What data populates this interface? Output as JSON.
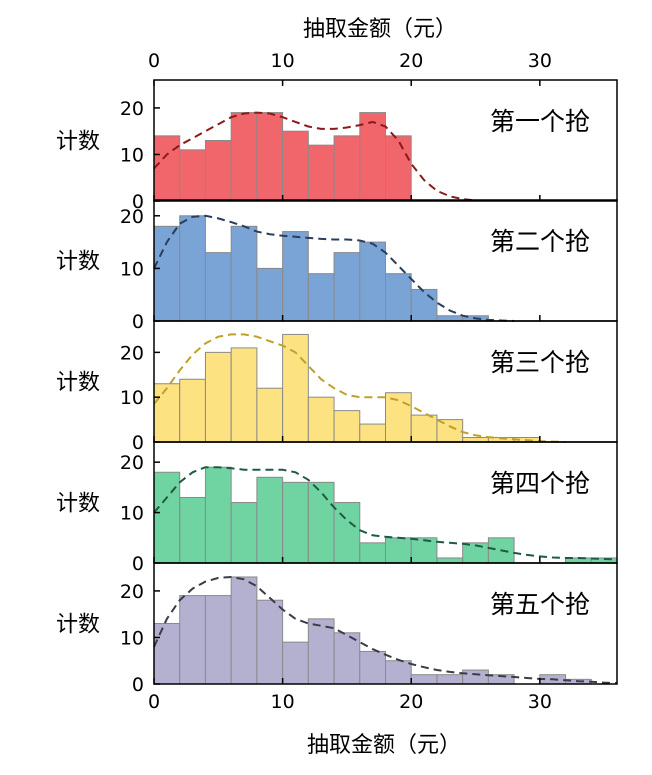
{
  "chart_data": {
    "type": "bar",
    "x_axis": {
      "label": "抽取金额（元）",
      "range": [
        0,
        36
      ],
      "ticks": [
        0,
        10,
        20,
        30
      ],
      "tick_labels": [
        "0",
        "10",
        "20",
        "30"
      ],
      "shown_on": [
        "top",
        "bottom"
      ]
    },
    "y_axis": {
      "label": "计数",
      "ticks": [
        0,
        10,
        20
      ],
      "tick_labels": [
        "0",
        "10",
        "20"
      ]
    },
    "bin_width": 2,
    "grid": false,
    "panels": [
      {
        "label": "第一个抢",
        "color": "#f0666b",
        "curve_color": "#8b1a1a",
        "ylim": [
          0,
          26
        ],
        "ticks": [
          0,
          10,
          20
        ],
        "bin_starts": [
          0,
          2,
          4,
          6,
          8,
          10,
          12,
          14,
          16,
          18
        ],
        "values": [
          14,
          11,
          13,
          19,
          19,
          15,
          12,
          14,
          19,
          14
        ],
        "curve": {
          "x": [
            0,
            1,
            2,
            3,
            4,
            5,
            6,
            7,
            8,
            9,
            10,
            11,
            12,
            13,
            14,
            15,
            16,
            17,
            18,
            19,
            20,
            21,
            22,
            23,
            24,
            25
          ],
          "y": [
            7,
            10,
            12,
            13.5,
            15,
            16.5,
            18,
            18.8,
            19,
            18.8,
            18,
            17,
            16,
            15.5,
            15.5,
            15.8,
            16.3,
            17,
            16,
            13,
            8,
            4.5,
            2.2,
            1,
            0.4,
            0.1
          ]
        }
      },
      {
        "label": "第二个抢",
        "color": "#7aa3d6",
        "curve_color": "#2a3d5c",
        "ylim": [
          0,
          23
        ],
        "ticks": [
          0,
          10,
          20
        ],
        "bin_starts": [
          0,
          2,
          4,
          6,
          8,
          10,
          12,
          14,
          16,
          18,
          20,
          22,
          24,
          26
        ],
        "values": [
          18,
          20,
          13,
          18,
          10,
          17,
          9,
          13,
          15,
          9,
          6,
          1,
          1,
          0
        ],
        "curve": {
          "x": [
            0,
            1,
            2,
            3,
            4,
            5,
            6,
            7,
            8,
            9,
            10,
            11,
            12,
            13,
            14,
            15,
            16,
            17,
            18,
            19,
            20,
            21,
            22,
            23,
            24,
            25,
            26,
            27,
            28
          ],
          "y": [
            10,
            15,
            18.5,
            19.8,
            20,
            19.5,
            18.8,
            18,
            17,
            16.5,
            16.2,
            16,
            15.8,
            15.6,
            15.5,
            15.5,
            15.3,
            14.7,
            13,
            10.5,
            8,
            5.5,
            3.5,
            2,
            1,
            0.5,
            0.2,
            0.1,
            0
          ]
        }
      },
      {
        "label": "第三个抢",
        "color": "#fde282",
        "curve_color": "#bfa02a",
        "ylim": [
          0,
          27
        ],
        "ticks": [
          0,
          10,
          20
        ],
        "bin_starts": [
          0,
          2,
          4,
          6,
          8,
          10,
          12,
          14,
          16,
          18,
          20,
          22,
          24,
          26,
          28,
          30
        ],
        "values": [
          13,
          14,
          20,
          21,
          12,
          24,
          10,
          7,
          4,
          11,
          6,
          5,
          1,
          1,
          1,
          0
        ],
        "curve": {
          "x": [
            0,
            1,
            2,
            3,
            4,
            5,
            6,
            7,
            8,
            9,
            10,
            11,
            12,
            13,
            14,
            15,
            16,
            17,
            18,
            19,
            20,
            21,
            22,
            23,
            24,
            25,
            26,
            27,
            28,
            29,
            30,
            31,
            32
          ],
          "y": [
            8.5,
            12,
            16,
            19.5,
            22,
            23.5,
            24,
            24,
            23.5,
            22.5,
            21.5,
            20,
            17,
            14,
            12,
            10.5,
            10,
            10,
            10,
            9.3,
            8,
            6.5,
            5,
            3.5,
            2.2,
            1.5,
            1.1,
            0.8,
            0.6,
            0.4,
            0.2,
            0.1,
            0
          ]
        }
      },
      {
        "label": "第四个抢",
        "color": "#6fd3a2",
        "curve_color": "#1e5a45",
        "ylim": [
          0,
          24
        ],
        "ticks": [
          0,
          10,
          20
        ],
        "bin_starts": [
          0,
          2,
          4,
          6,
          8,
          10,
          12,
          14,
          16,
          18,
          20,
          22,
          24,
          26,
          28,
          30,
          32,
          34
        ],
        "values": [
          18,
          13,
          19,
          12,
          17,
          16,
          16,
          12,
          4,
          5,
          5,
          1,
          4,
          5,
          0,
          0,
          1,
          1
        ],
        "curve": {
          "x": [
            0,
            1,
            2,
            3,
            4,
            5,
            6,
            7,
            8,
            9,
            10,
            11,
            12,
            13,
            14,
            15,
            16,
            17,
            18,
            19,
            20,
            21,
            22,
            23,
            24,
            25,
            26,
            27,
            28,
            29,
            30,
            31,
            32,
            33,
            34,
            35,
            36
          ],
          "y": [
            10,
            13,
            16,
            18,
            19,
            19,
            18.8,
            18.5,
            18.5,
            18.5,
            18.5,
            18,
            16.5,
            14,
            11,
            8.5,
            6.5,
            5.5,
            5.2,
            5,
            4.8,
            4.5,
            4.2,
            4,
            3.8,
            3.5,
            3,
            2.5,
            2,
            1.6,
            1.3,
            1.1,
            1,
            1,
            0.9,
            0.8,
            0.7
          ]
        }
      },
      {
        "label": "第五个抢",
        "color": "#b4b0d0",
        "curve_color": "#3b3b4a",
        "ylim": [
          0,
          26
        ],
        "ticks": [
          0,
          10,
          20
        ],
        "bin_starts": [
          0,
          2,
          4,
          6,
          8,
          10,
          12,
          14,
          16,
          18,
          20,
          22,
          24,
          26,
          28,
          30,
          32
        ],
        "values": [
          13,
          19,
          19,
          23,
          18,
          9,
          14,
          11,
          7,
          5,
          2,
          2,
          3,
          2,
          0,
          2,
          1
        ],
        "curve": {
          "x": [
            0,
            1,
            2,
            3,
            4,
            5,
            6,
            7,
            8,
            9,
            10,
            11,
            12,
            13,
            14,
            15,
            16,
            17,
            18,
            19,
            20,
            21,
            22,
            23,
            24,
            25,
            26,
            27,
            28,
            29,
            30,
            31,
            32,
            33,
            34,
            35,
            36
          ],
          "y": [
            8,
            14,
            18,
            20.5,
            22,
            22.8,
            23,
            22.5,
            21,
            18.5,
            16,
            14,
            13,
            12.5,
            12,
            10.5,
            9,
            7.5,
            6.3,
            5.2,
            4.3,
            3.6,
            3,
            2.6,
            2.3,
            2.1,
            1.9,
            1.7,
            1.5,
            1.3,
            1.1,
            1,
            0.8,
            0.6,
            0.5,
            0.3,
            0.2
          ]
        }
      }
    ]
  }
}
